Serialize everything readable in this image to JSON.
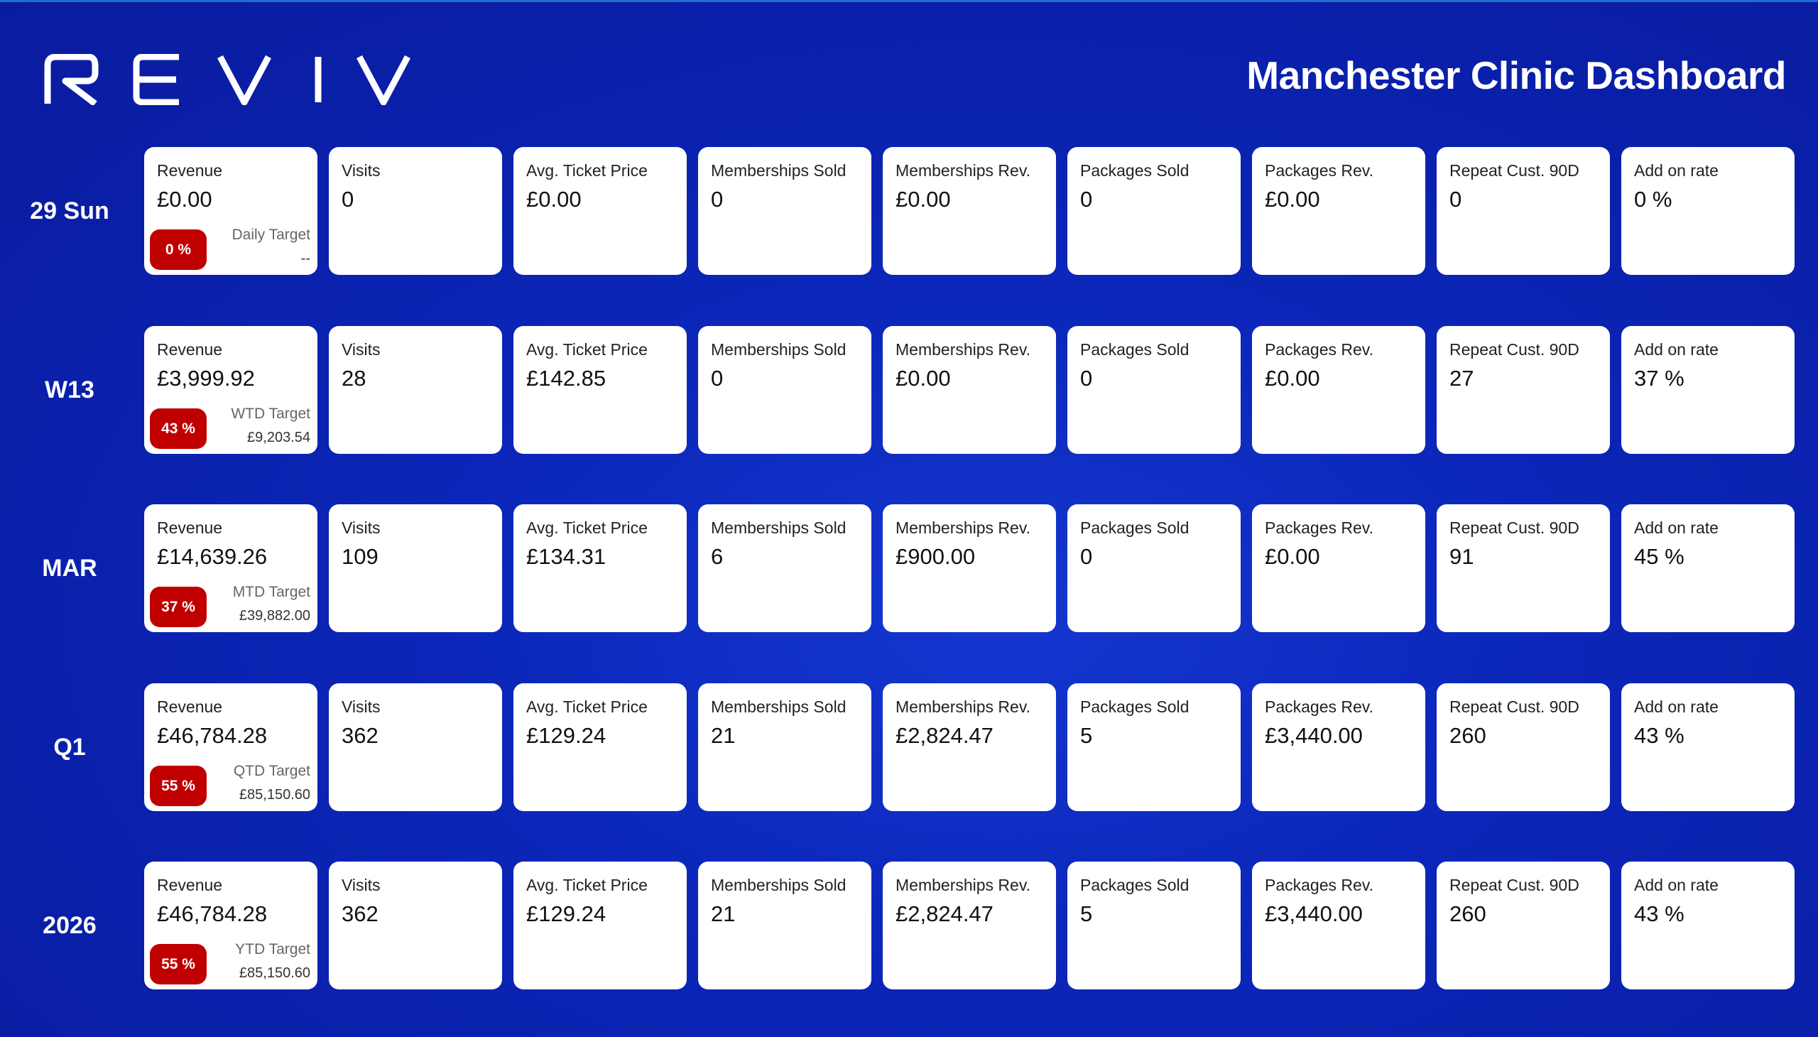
{
  "header": {
    "logo_text": "REVIV",
    "title": "Manchester Clinic Dashboard"
  },
  "colors": {
    "background": "#0b26b8",
    "card": "#ffffff",
    "badge": "#c00000"
  },
  "metric_labels": [
    "Visits",
    "Avg. Ticket Price",
    "Memberships Sold",
    "Memberships Rev.",
    "Packages Sold",
    "Packages Rev.",
    "Repeat Cust. 90D",
    "Add on rate"
  ],
  "rows": [
    {
      "label": "29 Sun",
      "revenue_label": "Revenue",
      "revenue": "£0.00",
      "badge": "0 %",
      "target_label": "Daily Target",
      "target_value": "--",
      "values": [
        "0",
        "£0.00",
        "0",
        "£0.00",
        "0",
        "£0.00",
        "0",
        "0 %"
      ]
    },
    {
      "label": "W13",
      "revenue_label": "Revenue",
      "revenue": "£3,999.92",
      "badge": "43 %",
      "target_label": "WTD Target",
      "target_value": "£9,203.54",
      "values": [
        "28",
        "£142.85",
        "0",
        "£0.00",
        "0",
        "£0.00",
        "27",
        "37 %"
      ]
    },
    {
      "label": "MAR",
      "revenue_label": "Revenue",
      "revenue": "£14,639.26",
      "badge": "37 %",
      "target_label": "MTD Target",
      "target_value": "£39,882.00",
      "values": [
        "109",
        "£134.31",
        "6",
        "£900.00",
        "0",
        "£0.00",
        "91",
        "45 %"
      ]
    },
    {
      "label": "Q1",
      "revenue_label": "Revenue",
      "revenue": "£46,784.28",
      "badge": "55 %",
      "target_label": "QTD Target",
      "target_value": "£85,150.60",
      "values": [
        "362",
        "£129.24",
        "21",
        "£2,824.47",
        "5",
        "£3,440.00",
        "260",
        "43 %"
      ]
    },
    {
      "label": "2026",
      "revenue_label": "Revenue",
      "revenue": "£46,784.28",
      "badge": "55 %",
      "target_label": "YTD Target",
      "target_value": "£85,150.60",
      "values": [
        "362",
        "£129.24",
        "21",
        "£2,824.47",
        "5",
        "£3,440.00",
        "260",
        "43 %"
      ]
    }
  ]
}
